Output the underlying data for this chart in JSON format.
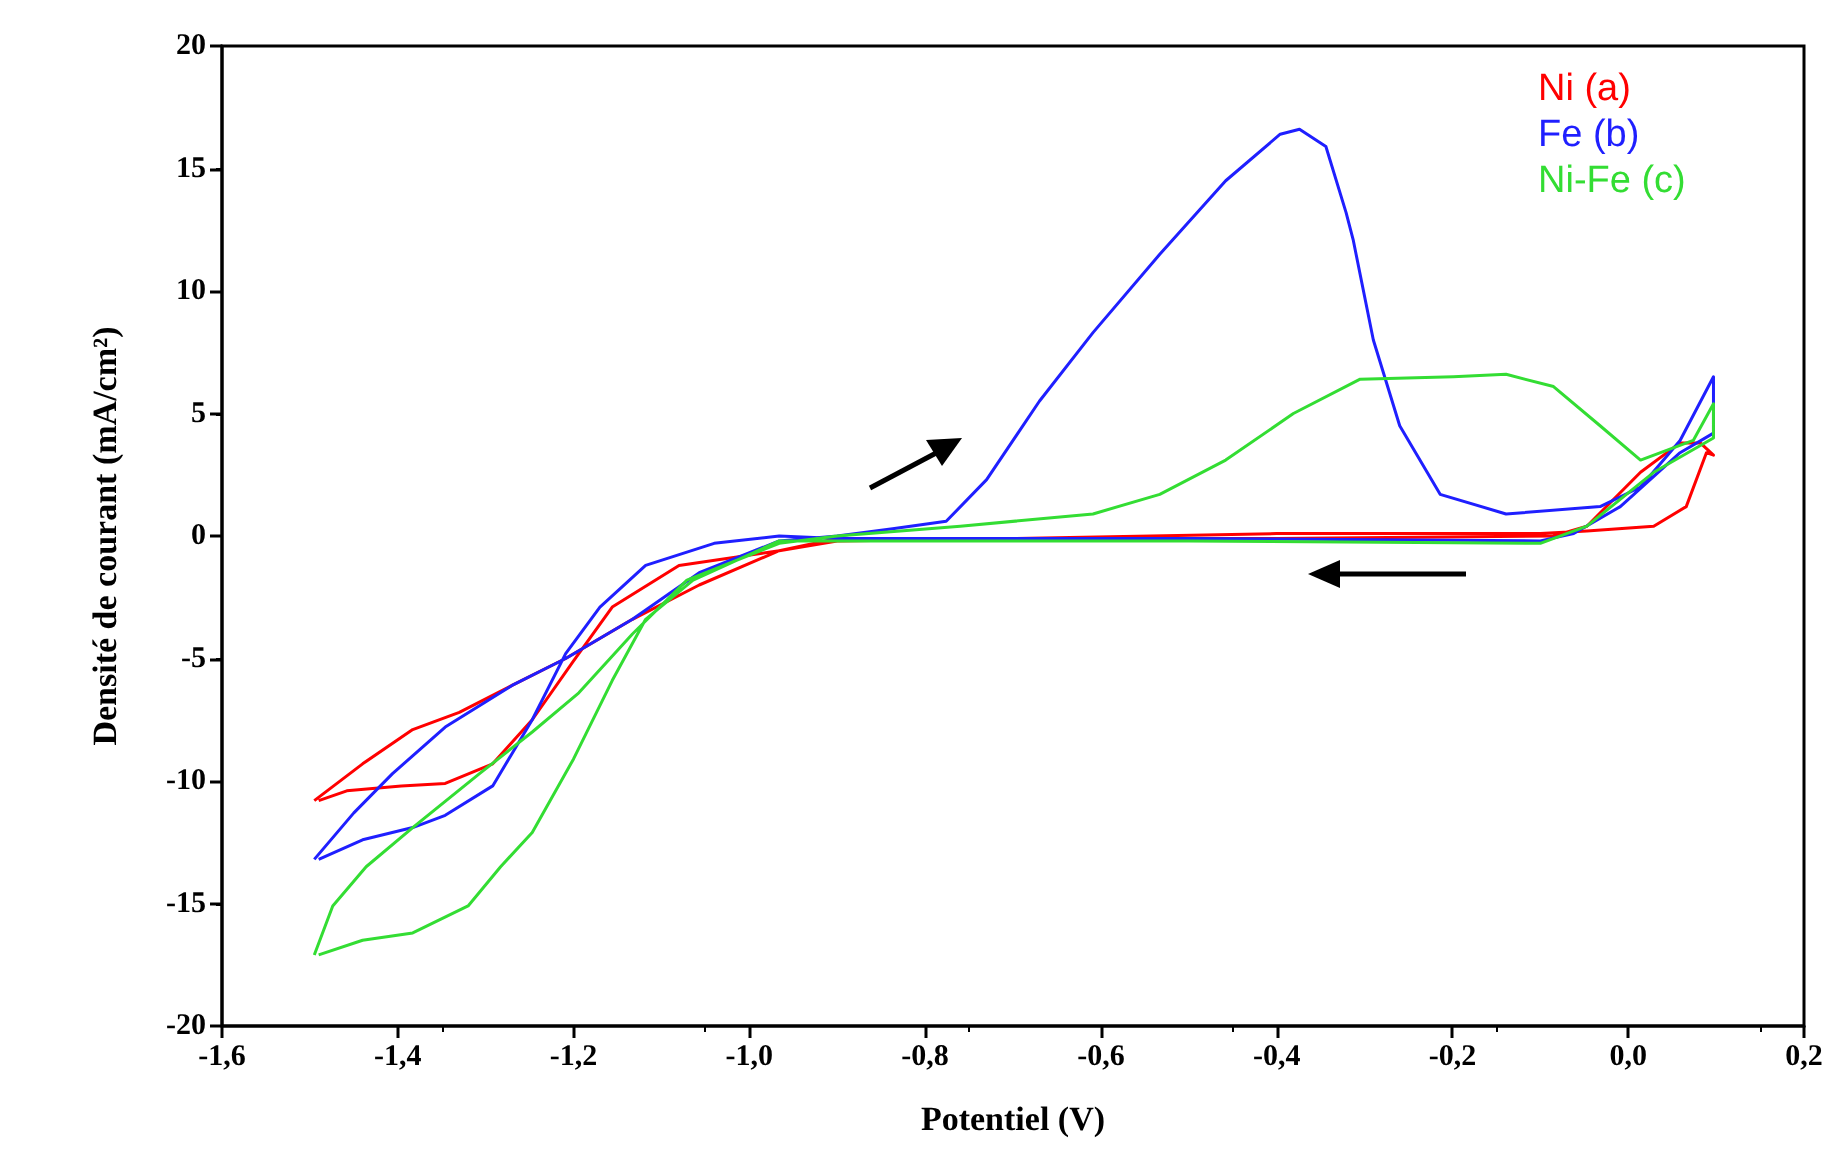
{
  "chart_data": {
    "type": "line",
    "xlabel": "Potentiel (V)",
    "ylabel": "Densité de courant (mA/cm²)",
    "xlim": [
      -1.6,
      0.2
    ],
    "xticks": [
      {
        "value": -1.6,
        "label": "-1,6"
      },
      {
        "value": -1.4,
        "label": "-1,4"
      },
      {
        "value": -1.2,
        "label": "-1,2"
      },
      {
        "value": -1.0,
        "label": "-1,0"
      },
      {
        "value": -0.8,
        "label": "-0,8"
      },
      {
        "value": -0.6,
        "label": "-0,6"
      },
      {
        "value": -0.4,
        "label": "-0,4"
      },
      {
        "value": -0.2,
        "label": "-0,2"
      },
      {
        "value": 0,
        "label": "0,0"
      },
      {
        "value": 0.2,
        "label": "0,2"
      }
    ],
    "ylim": [
      -20,
      20
    ],
    "yticks": [
      -20,
      -15,
      -10,
      -5,
      0,
      5,
      10,
      15,
      20
    ],
    "grid": false,
    "marker": "none",
    "line_style": "solid",
    "series": [
      {
        "name": "Ni (a)",
        "color": "#ff0000",
        "x": [
          -1.495,
          -1.44,
          -1.383,
          -1.33,
          -1.27,
          -1.209,
          -1.133,
          -1.057,
          -0.966,
          -0.9,
          -0.7,
          -0.4,
          -0.1,
          -0.047,
          0.029,
          0.066,
          0.089,
          0.097,
          0.082,
          0.059,
          0.014,
          -0.047,
          -0.085,
          -0.4,
          -0.9,
          -0.966,
          -1.08,
          -1.156,
          -1.2,
          -1.247,
          -1.292,
          -1.346,
          -1.396,
          -1.458,
          -1.49
        ],
        "values": [
          -10.8,
          -9.3,
          -7.9,
          -7.2,
          -6.1,
          -5.0,
          -3.4,
          -2.0,
          -0.6,
          -0.2,
          -0.1,
          0.1,
          0.1,
          0.2,
          0.4,
          1.2,
          3.4,
          3.3,
          3.8,
          3.8,
          2.6,
          0.4,
          0,
          -0.1,
          -0.1,
          -0.6,
          -1.2,
          -2.9,
          -5.1,
          -7.5,
          -9.3,
          -10.1,
          -10.2,
          -10.4,
          -10.8
        ]
      },
      {
        "name": "Fe (b)",
        "color": "#1f1fff",
        "x": [
          -1.495,
          -1.45,
          -1.406,
          -1.346,
          -1.27,
          -1.209,
          -1.133,
          -1.057,
          -0.966,
          -0.9,
          -0.837,
          -0.776,
          -0.73,
          -0.67,
          -0.609,
          -0.533,
          -0.458,
          -0.396,
          -0.374,
          -0.344,
          -0.321,
          -0.313,
          -0.29,
          -0.26,
          -0.214,
          -0.139,
          -0.032,
          0.014,
          0.059,
          0.097,
          0.097,
          0.059,
          -0.009,
          -0.062,
          -0.1,
          -0.5,
          -0.9,
          -0.966,
          -1.04,
          -1.118,
          -1.17,
          -1.209,
          -1.247,
          -1.292,
          -1.346,
          -1.383,
          -1.44,
          -1.49
        ],
        "values": [
          -13.2,
          -11.3,
          -9.7,
          -7.8,
          -6.1,
          -5.0,
          -3.4,
          -1.5,
          -0.2,
          0.0,
          0.3,
          0.6,
          2.3,
          5.5,
          8.3,
          11.5,
          14.5,
          16.4,
          16.6,
          15.9,
          13.2,
          12.1,
          8.0,
          4.5,
          1.7,
          0.9,
          1.2,
          2.0,
          3.9,
          6.5,
          4.2,
          3.4,
          1.2,
          0.1,
          -0.2,
          -0.1,
          -0.1,
          0,
          -0.3,
          -1.2,
          -2.9,
          -4.8,
          -7.5,
          -10.2,
          -11.4,
          -11.9,
          -12.4,
          -13.2
        ]
      },
      {
        "name": "Ni-Fe (c)",
        "color": "#33dd33",
        "x": [
          -1.495,
          -1.474,
          -1.436,
          -1.383,
          -1.307,
          -1.247,
          -1.194,
          -1.133,
          -1.071,
          -0.966,
          -0.9,
          -0.76,
          -0.609,
          -0.533,
          -0.458,
          -0.381,
          -0.305,
          -0.199,
          -0.139,
          -0.085,
          -0.032,
          0.014,
          0.074,
          0.097,
          0.097,
          0.029,
          -0.047,
          -0.1,
          -0.5,
          -0.9,
          -0.966,
          -1.064,
          -1.118,
          -1.156,
          -1.2,
          -1.247,
          -1.283,
          -1.32,
          -1.383,
          -1.44,
          -1.49
        ],
        "values": [
          -17.1,
          -15.1,
          -13.5,
          -11.9,
          -9.7,
          -8.0,
          -6.4,
          -4.0,
          -1.8,
          -0.3,
          0.0,
          0.4,
          0.9,
          1.7,
          3.1,
          5.0,
          6.4,
          6.5,
          6.6,
          6.1,
          4.5,
          3.1,
          3.9,
          5.4,
          4.0,
          2.6,
          0.4,
          -0.3,
          -0.2,
          -0.2,
          -0.2,
          -1.8,
          -3.4,
          -5.9,
          -9.1,
          -12.1,
          -13.5,
          -15.1,
          -16.2,
          -16.5,
          -17.1
        ]
      }
    ]
  }
}
